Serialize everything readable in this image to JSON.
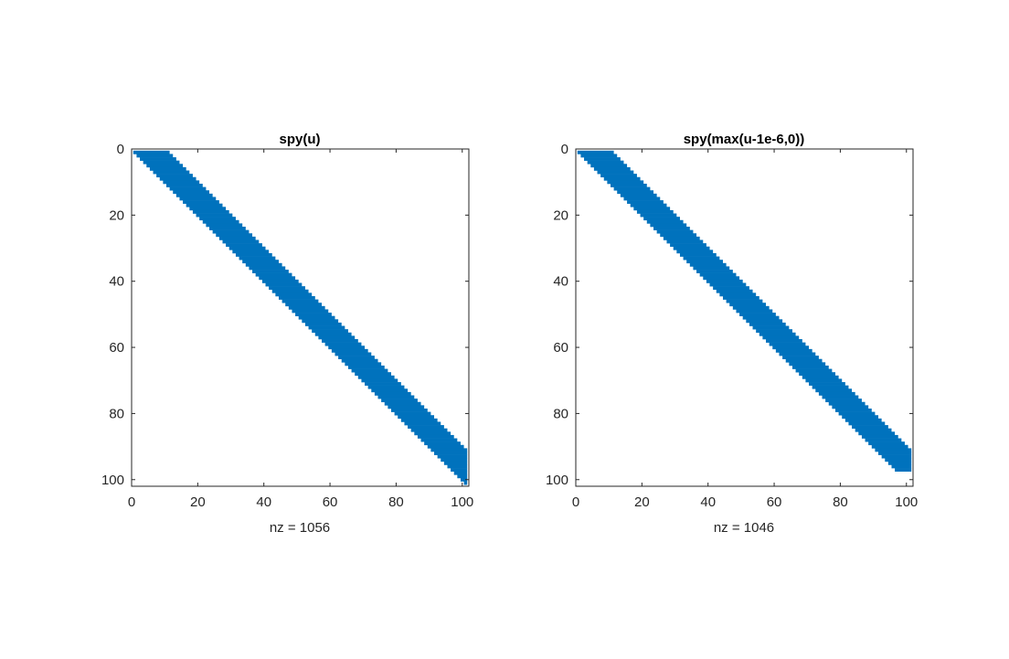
{
  "chart_data": [
    {
      "type": "spy",
      "title": "spy(u)",
      "xlabel": "nz = 1056",
      "ylabel": "",
      "matrix_size": 101,
      "xlim": [
        0,
        102
      ],
      "ylim": [
        0,
        102
      ],
      "y_reversed": true,
      "xticks": [
        0,
        20,
        40,
        60,
        80,
        100
      ],
      "yticks": [
        0,
        20,
        40,
        60,
        80,
        100
      ],
      "xtick_labels": [
        "0",
        "20",
        "40",
        "60",
        "80",
        "100"
      ],
      "ytick_labels": [
        "0",
        "20",
        "40",
        "60",
        "80",
        "100"
      ],
      "band": {
        "lower_offset": 0,
        "upper_offset": 10,
        "last_row": 101
      },
      "nz": 1056,
      "color": "#0072BD"
    },
    {
      "type": "spy",
      "title": "spy(max(u-1e-6,0))",
      "xlabel": "nz = 1046",
      "ylabel": "",
      "matrix_size": 101,
      "xlim": [
        0,
        102
      ],
      "ylim": [
        0,
        102
      ],
      "y_reversed": true,
      "xticks": [
        0,
        20,
        40,
        60,
        80,
        100
      ],
      "yticks": [
        0,
        20,
        40,
        60,
        80,
        100
      ],
      "xtick_labels": [
        "0",
        "20",
        "40",
        "60",
        "80",
        "100"
      ],
      "ytick_labels": [
        "0",
        "20",
        "40",
        "60",
        "80",
        "100"
      ],
      "band": {
        "lower_offset": 0,
        "upper_offset": 10,
        "last_row": 97
      },
      "nz": 1046,
      "color": "#0072BD"
    }
  ]
}
